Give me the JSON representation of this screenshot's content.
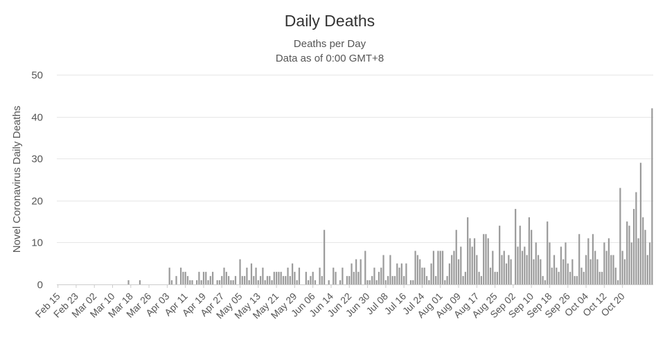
{
  "chart_data": {
    "type": "bar",
    "title": "Daily Deaths",
    "subtitle": [
      "Deaths per Day",
      "Data as of 0:00 GMT+8"
    ],
    "ylabel": "Novel Coronavirus Daily Deaths",
    "xlabel": "",
    "ylim": [
      0,
      50
    ],
    "yticks": [
      0,
      10,
      20,
      30,
      40,
      50
    ],
    "grid": true,
    "legend": "none",
    "bar_color": "#9b9b9b",
    "start_date": "Feb 15",
    "xtick_labels": [
      "Feb 15",
      "Feb 23",
      "Mar 02",
      "Mar 10",
      "Mar 18",
      "Mar 26",
      "Apr 03",
      "Apr 11",
      "Apr 19",
      "Apr 27",
      "May 05",
      "May 13",
      "May 21",
      "May 29",
      "Jun 06",
      "Jun 14",
      "Jun 22",
      "Jun 30",
      "Jul 08",
      "Jul 16",
      "Jul 24",
      "Aug 01",
      "Aug 09",
      "Aug 17",
      "Aug 25",
      "Sep 02",
      "Sep 10",
      "Sep 18",
      "Sep 26",
      "Oct 04",
      "Oct 12",
      "Oct 20"
    ],
    "values": [
      0,
      0,
      0,
      0,
      0,
      0,
      0,
      0,
      0,
      0,
      0,
      0,
      0,
      0,
      0,
      0,
      0,
      0,
      0,
      0,
      0,
      0,
      0,
      0,
      0,
      0,
      0,
      0,
      0,
      0,
      0,
      1,
      0,
      0,
      0,
      0,
      1,
      0,
      0,
      0,
      0,
      0,
      0,
      0,
      0,
      0,
      0,
      0,
      0,
      4,
      1,
      0,
      2,
      0,
      4,
      3,
      3,
      2,
      1,
      1,
      0,
      1,
      3,
      1,
      3,
      3,
      1,
      2,
      3,
      0,
      1,
      1,
      2,
      4,
      3,
      2,
      1,
      1,
      2,
      0,
      6,
      2,
      2,
      4,
      1,
      5,
      2,
      4,
      1,
      2,
      4,
      1,
      2,
      2,
      1,
      3,
      3,
      3,
      3,
      2,
      2,
      4,
      2,
      5,
      3,
      1,
      4,
      0,
      0,
      3,
      1,
      2,
      3,
      1,
      0,
      4,
      2,
      13,
      0,
      1,
      0,
      4,
      3,
      0,
      1,
      4,
      0,
      2,
      2,
      5,
      3,
      6,
      3,
      6,
      0,
      8,
      1,
      1,
      2,
      4,
      1,
      3,
      4,
      7,
      1,
      2,
      7,
      2,
      2,
      5,
      4,
      5,
      2,
      5,
      0,
      1,
      1,
      8,
      7,
      6,
      4,
      4,
      2,
      1,
      5,
      8,
      2,
      8,
      8,
      8,
      1,
      2,
      5,
      7,
      8,
      13,
      6,
      9,
      2,
      3,
      16,
      11,
      9,
      11,
      7,
      3,
      2,
      12,
      12,
      11,
      4,
      8,
      3,
      3,
      14,
      7,
      8,
      5,
      7,
      6,
      0,
      18,
      9,
      14,
      8,
      9,
      7,
      16,
      13,
      6,
      10,
      7,
      6,
      2,
      1,
      15,
      10,
      4,
      7,
      4,
      3,
      9,
      6,
      10,
      5,
      3,
      6,
      2,
      2,
      12,
      4,
      3,
      7,
      11,
      6,
      12,
      8,
      6,
      3,
      3,
      10,
      8,
      11,
      7,
      7,
      4,
      1,
      23,
      8,
      6,
      15,
      14,
      10,
      18,
      22,
      11,
      29,
      16,
      13,
      7,
      10,
      42
    ]
  }
}
